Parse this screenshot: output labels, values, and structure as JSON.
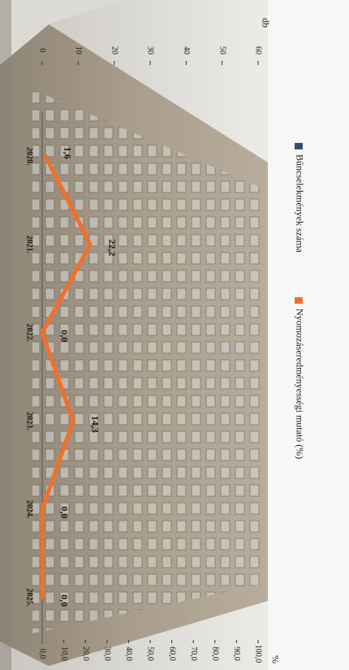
{
  "chart_data": {
    "type": "line",
    "orientation": "rotated-90-clockwise",
    "title": "",
    "categories": [
      "2020.",
      "2021.",
      "2022.",
      "2023.",
      "2024.",
      "2025."
    ],
    "left_axis": {
      "unit": "db",
      "range": [
        0,
        60
      ],
      "ticks": [
        "0",
        "10",
        "20",
        "30",
        "40",
        "50",
        "60"
      ]
    },
    "right_axis": {
      "unit": "%",
      "range": [
        0,
        100
      ],
      "ticks": [
        "0,0",
        "10,0",
        "20,0",
        "30,0",
        "40,0",
        "50,0",
        "60,0",
        "70,0",
        "80,0",
        "90,0",
        "100,0"
      ]
    },
    "legend": {
      "placement": "top",
      "items": [
        {
          "name": "Bűncselekmények száma",
          "color": "#2f4f6f"
        },
        {
          "name": "Nyomozáseredményességi mutató (%)",
          "color": "#f0702a"
        }
      ]
    },
    "series": [
      {
        "name": "Nyomozáseredményességi mutató (%)",
        "axis": "right",
        "color": "#f0702a",
        "values": [
          1.6,
          22.2,
          0.0,
          14.3,
          0.0,
          0.0
        ],
        "labels": [
          "1,6",
          "22,2",
          "0,0",
          "14,3",
          "0,0",
          "0,0"
        ]
      }
    ],
    "grid": false
  }
}
